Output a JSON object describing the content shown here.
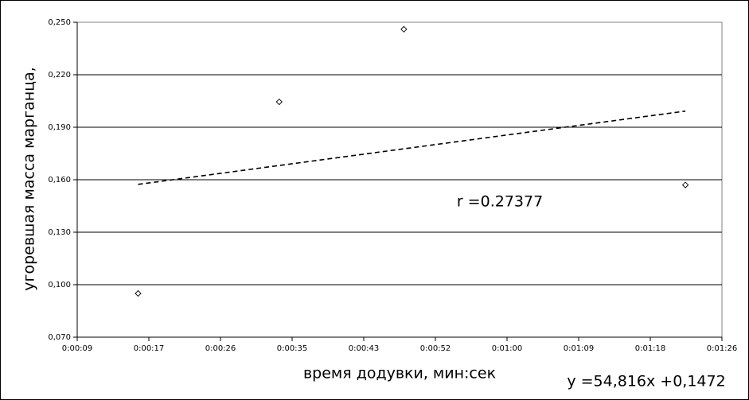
{
  "chart_data": {
    "type": "scatter",
    "x_label": "время додувки, мин:сек",
    "y_label": "угоревшая масса марганца,",
    "x": [
      0.000185,
      0.000382,
      0.000556,
      0.000949
    ],
    "series": [
      {
        "color": "#000000",
        "values": [
          0.095,
          0.2045,
          0.246,
          0.157
        ]
      }
    ],
    "xlim": [
      0.0001,
      0.001
    ],
    "xticks": [
      {
        "value": 0.0001,
        "label": "0:00:09"
      },
      {
        "value": 0.0002,
        "label": "0:00:17"
      },
      {
        "value": 0.0003,
        "label": "0:00:26"
      },
      {
        "value": 0.0004,
        "label": "0:00:35"
      },
      {
        "value": 0.0005,
        "label": "0:00:43"
      },
      {
        "value": 0.0006,
        "label": "0:00:52"
      },
      {
        "value": 0.0007,
        "label": "0:01:00"
      },
      {
        "value": 0.0008,
        "label": "0:01:09"
      },
      {
        "value": 0.0009,
        "label": "0:01:18"
      },
      {
        "value": 0.001,
        "label": "0:01:26"
      }
    ],
    "ylim": [
      0.07,
      0.25
    ],
    "yticks": [
      {
        "value": 0.07,
        "label": "0,070"
      },
      {
        "value": 0.1,
        "label": "0,100"
      },
      {
        "value": 0.13,
        "label": "0,130"
      },
      {
        "value": 0.16,
        "label": "0,160"
      },
      {
        "value": 0.19,
        "label": "0,190"
      },
      {
        "value": 0.22,
        "label": "0,220"
      },
      {
        "value": 0.25,
        "label": "0,250"
      }
    ],
    "grid": true,
    "trendline": {
      "slope": 54.816,
      "intercept": 0.1472,
      "label": "y =54,816x +0,1472"
    },
    "annotation": "r =0.27377"
  }
}
